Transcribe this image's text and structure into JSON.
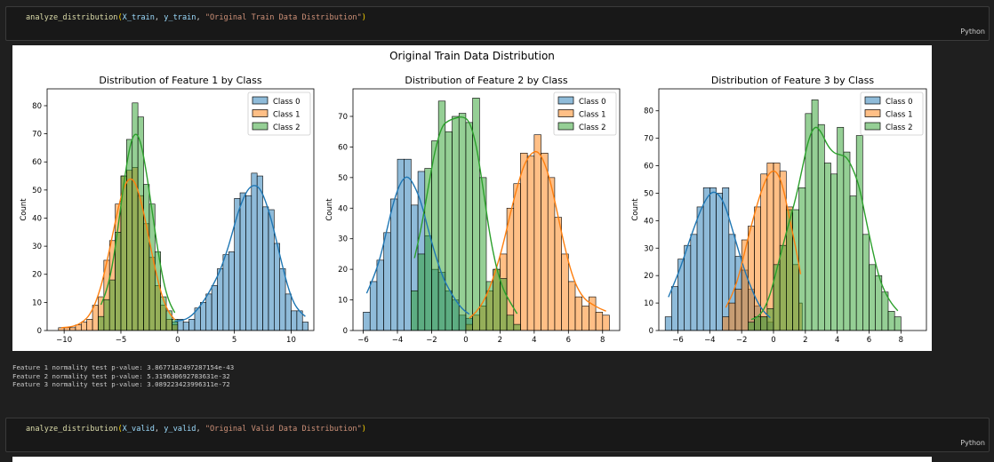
{
  "cell1": {
    "fn": "analyze_distribution",
    "args": [
      "X_train",
      "y_train"
    ],
    "title_arg": "\"Original Train Data Distribution\"",
    "lang": "Python"
  },
  "cell2": {
    "fn": "analyze_distribution",
    "args": [
      "X_valid",
      "y_valid"
    ],
    "title_arg": "\"Original Valid Data Distribution\"",
    "lang": "Python"
  },
  "figure": {
    "suptitle": "Original Train Data Distribution"
  },
  "output_lines": [
    "Feature 1 normality test p-value: 3.8677182497287154e-43",
    "Feature 2 normality test p-value: 5.319630692783631e-32",
    "Feature 3 normality test p-value: 3.089223423996311e-72"
  ],
  "colors": {
    "class0": "#1f77b4",
    "class1": "#ff7f0e",
    "class2": "#2ca02c"
  },
  "chart_data": [
    {
      "type": "histogram",
      "title": "Distribution of Feature 1 by Class",
      "ylabel": "Count",
      "xlabel": "",
      "xlim": [
        -11.5,
        12
      ],
      "ylim": [
        0,
        86
      ],
      "xticks": [
        -10,
        -5,
        0,
        5,
        10
      ],
      "yticks": [
        0,
        10,
        20,
        30,
        40,
        50,
        60,
        70,
        80
      ],
      "legend": "top-right",
      "series": [
        {
          "name": "Class 0",
          "bins": [
            [
              -0.5,
              0.0,
              3
            ],
            [
              0.0,
              0.5,
              4
            ],
            [
              0.5,
              1.0,
              3
            ],
            [
              1.0,
              1.5,
              4
            ],
            [
              1.5,
              2.0,
              8
            ],
            [
              2.0,
              2.5,
              10
            ],
            [
              2.5,
              3.0,
              13
            ],
            [
              3.0,
              3.5,
              16
            ],
            [
              3.5,
              4.0,
              22
            ],
            [
              4.0,
              4.5,
              27
            ],
            [
              4.5,
              5.0,
              28
            ],
            [
              5.0,
              5.5,
              47
            ],
            [
              5.5,
              6.0,
              49
            ],
            [
              6.0,
              6.5,
              48
            ],
            [
              6.5,
              7.0,
              56
            ],
            [
              7.0,
              7.5,
              55
            ],
            [
              7.5,
              8.0,
              44
            ],
            [
              8.0,
              8.5,
              43
            ],
            [
              8.5,
              9.0,
              31
            ],
            [
              9.0,
              9.5,
              22
            ],
            [
              9.5,
              10.0,
              13
            ],
            [
              10.0,
              10.5,
              7
            ],
            [
              10.5,
              11.0,
              7
            ],
            [
              11.0,
              11.5,
              3
            ]
          ]
        },
        {
          "name": "Class 1",
          "bins": [
            [
              -10.5,
              -10.0,
              1
            ],
            [
              -10.0,
              -9.5,
              1
            ],
            [
              -9.5,
              -9.0,
              1
            ],
            [
              -9.0,
              -8.5,
              2
            ],
            [
              -8.5,
              -8.0,
              3
            ],
            [
              -8.0,
              -7.5,
              4
            ],
            [
              -7.5,
              -7.0,
              9
            ],
            [
              -7.0,
              -6.5,
              12
            ],
            [
              -6.5,
              -6.0,
              25
            ],
            [
              -6.0,
              -5.5,
              32
            ],
            [
              -5.5,
              -5.0,
              45
            ],
            [
              -5.0,
              -4.5,
              55
            ],
            [
              -4.5,
              -4.0,
              57
            ],
            [
              -4.0,
              -3.5,
              58
            ],
            [
              -3.5,
              -3.0,
              48
            ],
            [
              -3.0,
              -2.5,
              38
            ],
            [
              -2.5,
              -2.0,
              26
            ],
            [
              -2.0,
              -1.5,
              16
            ],
            [
              -1.5,
              -1.0,
              9
            ],
            [
              -1.0,
              -0.5,
              4
            ],
            [
              -0.5,
              0.0,
              2
            ]
          ]
        },
        {
          "name": "Class 2",
          "bins": [
            [
              -7.0,
              -6.5,
              5
            ],
            [
              -6.5,
              -6.0,
              11
            ],
            [
              -6.0,
              -5.5,
              18
            ],
            [
              -5.5,
              -5.0,
              35
            ],
            [
              -5.0,
              -4.5,
              55
            ],
            [
              -4.5,
              -4.0,
              68
            ],
            [
              -4.0,
              -3.5,
              81
            ],
            [
              -3.5,
              -3.0,
              76
            ],
            [
              -3.0,
              -2.5,
              52
            ],
            [
              -2.5,
              -2.0,
              45
            ],
            [
              -2.0,
              -1.5,
              28
            ],
            [
              -1.5,
              -1.0,
              12
            ],
            [
              -1.0,
              -0.5,
              7
            ],
            [
              -0.5,
              0.0,
              4
            ]
          ]
        }
      ]
    },
    {
      "type": "histogram",
      "title": "Distribution of Feature 2 by Class",
      "ylabel": "Count",
      "xlabel": "",
      "xlim": [
        -6.6,
        9.0
      ],
      "ylim": [
        0,
        79
      ],
      "xticks": [
        -6,
        -4,
        -2,
        0,
        2,
        4,
        6,
        8
      ],
      "yticks": [
        0,
        10,
        20,
        30,
        40,
        50,
        60,
        70
      ],
      "legend": "top-right",
      "series": [
        {
          "name": "Class 0",
          "bins": [
            [
              -6.0,
              -5.6,
              6
            ],
            [
              -5.6,
              -5.2,
              16
            ],
            [
              -5.2,
              -4.8,
              23
            ],
            [
              -4.8,
              -4.4,
              32
            ],
            [
              -4.4,
              -4.0,
              43
            ],
            [
              -4.0,
              -3.6,
              56
            ],
            [
              -3.6,
              -3.2,
              56
            ],
            [
              -3.2,
              -2.8,
              41
            ],
            [
              -2.8,
              -2.4,
              52
            ],
            [
              -2.4,
              -2.0,
              31
            ],
            [
              -2.0,
              -1.6,
              20
            ],
            [
              -1.6,
              -1.2,
              19
            ],
            [
              -1.2,
              -0.8,
              13
            ],
            [
              -0.8,
              -0.4,
              10
            ],
            [
              -0.4,
              0.0,
              5
            ],
            [
              0.0,
              0.4,
              4
            ]
          ]
        },
        {
          "name": "Class 1",
          "bins": [
            [
              0.0,
              0.4,
              2
            ],
            [
              0.4,
              0.8,
              5
            ],
            [
              0.8,
              1.2,
              8
            ],
            [
              1.2,
              1.6,
              13
            ],
            [
              1.6,
              2.0,
              20
            ],
            [
              2.0,
              2.4,
              25
            ],
            [
              2.4,
              2.8,
              40
            ],
            [
              2.8,
              3.2,
              48
            ],
            [
              3.2,
              3.6,
              58
            ],
            [
              3.6,
              4.0,
              57
            ],
            [
              4.0,
              4.4,
              64
            ],
            [
              4.4,
              4.8,
              58
            ],
            [
              4.8,
              5.2,
              50
            ],
            [
              5.2,
              5.6,
              37
            ],
            [
              5.6,
              6.0,
              25
            ],
            [
              6.0,
              6.4,
              16
            ],
            [
              6.4,
              6.8,
              11
            ],
            [
              6.8,
              7.2,
              8
            ],
            [
              7.2,
              7.6,
              11
            ],
            [
              7.6,
              8.0,
              6
            ],
            [
              8.0,
              8.4,
              5
            ]
          ]
        },
        {
          "name": "Class 2",
          "bins": [
            [
              -3.2,
              -2.8,
              13
            ],
            [
              -2.8,
              -2.4,
              25
            ],
            [
              -2.4,
              -2.0,
              53
            ],
            [
              -2.0,
              -1.6,
              62
            ],
            [
              -1.6,
              -1.2,
              75
            ],
            [
              -1.2,
              -0.8,
              65
            ],
            [
              -0.8,
              -0.4,
              70
            ],
            [
              -0.4,
              0.0,
              71
            ],
            [
              0.0,
              0.4,
              68
            ],
            [
              0.4,
              0.8,
              76
            ],
            [
              0.8,
              1.2,
              50
            ],
            [
              1.2,
              1.6,
              16
            ],
            [
              1.6,
              2.0,
              20
            ],
            [
              2.0,
              2.4,
              17
            ],
            [
              2.4,
              2.8,
              5
            ],
            [
              2.8,
              3.2,
              2
            ]
          ]
        }
      ]
    },
    {
      "type": "histogram",
      "title": "Distribution of Feature 3 by Class",
      "ylabel": "Count",
      "xlabel": "",
      "xlim": [
        -7.2,
        9.6
      ],
      "ylim": [
        0,
        88
      ],
      "xticks": [
        -6,
        -4,
        -2,
        0,
        2,
        4,
        6,
        8
      ],
      "yticks": [
        0,
        10,
        20,
        30,
        40,
        50,
        60,
        70,
        80
      ],
      "legend": "top-right",
      "series": [
        {
          "name": "Class 0",
          "bins": [
            [
              -6.8,
              -6.4,
              5
            ],
            [
              -6.4,
              -6.0,
              16
            ],
            [
              -6.0,
              -5.6,
              26
            ],
            [
              -5.6,
              -5.2,
              31
            ],
            [
              -5.2,
              -4.8,
              35
            ],
            [
              -4.8,
              -4.4,
              45
            ],
            [
              -4.4,
              -4.0,
              52
            ],
            [
              -4.0,
              -3.6,
              52
            ],
            [
              -3.6,
              -3.2,
              50
            ],
            [
              -3.2,
              -2.8,
              52
            ],
            [
              -2.8,
              -2.4,
              35
            ],
            [
              -2.4,
              -2.0,
              27
            ],
            [
              -2.0,
              -1.6,
              22
            ],
            [
              -1.6,
              -1.2,
              15
            ],
            [
              -1.2,
              -0.8,
              9
            ],
            [
              -0.8,
              -0.4,
              5
            ],
            [
              -0.4,
              0.0,
              3
            ]
          ]
        },
        {
          "name": "Class 1",
          "bins": [
            [
              -3.2,
              -2.8,
              5
            ],
            [
              -2.8,
              -2.4,
              10
            ],
            [
              -2.4,
              -2.0,
              15
            ],
            [
              -2.0,
              -1.6,
              33
            ],
            [
              -1.6,
              -1.2,
              38
            ],
            [
              -1.2,
              -0.8,
              45
            ],
            [
              -0.8,
              -0.4,
              57
            ],
            [
              -0.4,
              0.0,
              61
            ],
            [
              0.0,
              0.4,
              61
            ],
            [
              0.4,
              0.8,
              58
            ],
            [
              0.8,
              1.2,
              45
            ],
            [
              1.2,
              1.6,
              24
            ],
            [
              1.6,
              1.8,
              10
            ]
          ]
        },
        {
          "name": "Class 2",
          "bins": [
            [
              -1.6,
              -1.2,
              3
            ],
            [
              -1.2,
              -0.8,
              5
            ],
            [
              -0.8,
              -0.4,
              5
            ],
            [
              -0.4,
              0.0,
              8
            ],
            [
              0.0,
              0.4,
              24
            ],
            [
              0.4,
              0.8,
              31
            ],
            [
              0.8,
              1.2,
              44
            ],
            [
              1.2,
              1.6,
              44
            ],
            [
              1.6,
              2.0,
              52
            ],
            [
              2.0,
              2.4,
              79
            ],
            [
              2.4,
              2.8,
              84
            ],
            [
              2.8,
              3.2,
              75
            ],
            [
              3.2,
              3.6,
              61
            ],
            [
              3.6,
              4.0,
              57
            ],
            [
              4.0,
              4.4,
              74
            ],
            [
              4.4,
              4.8,
              65
            ],
            [
              4.8,
              5.2,
              49
            ],
            [
              5.2,
              5.6,
              71
            ],
            [
              5.6,
              6.0,
              35
            ],
            [
              6.0,
              6.4,
              24
            ],
            [
              6.4,
              6.8,
              20
            ],
            [
              6.8,
              7.2,
              14
            ],
            [
              7.2,
              7.6,
              7
            ],
            [
              7.6,
              8.0,
              5
            ]
          ]
        }
      ]
    }
  ]
}
